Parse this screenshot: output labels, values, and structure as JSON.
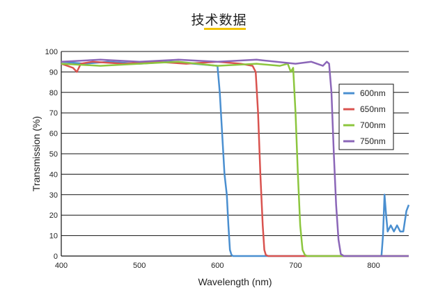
{
  "header": {
    "title": "技术数据"
  },
  "chart_data": {
    "type": "line",
    "xlabel": "Wavelength (nm)",
    "ylabel": "Transmission (%)",
    "xlim": [
      400,
      845
    ],
    "ylim": [
      0,
      100
    ],
    "x_ticks": [
      400,
      500,
      600,
      700,
      800
    ],
    "y_ticks": [
      0,
      10,
      20,
      30,
      40,
      50,
      60,
      70,
      80,
      90,
      100
    ],
    "grid": "horizontal",
    "legend_position": "right",
    "series": [
      {
        "name": "600nm",
        "color": "#4a8fd0",
        "x": [
          400,
          430,
          460,
          500,
          540,
          570,
          600,
          603,
          606,
          609,
          612,
          614,
          616,
          618,
          620,
          640,
          700,
          780,
          810,
          812,
          814,
          816,
          818,
          822,
          826,
          830,
          834,
          838,
          842,
          845
        ],
        "y": [
          95,
          94,
          95,
          94,
          95,
          94,
          93,
          80,
          60,
          40,
          30,
          15,
          3,
          0.5,
          0,
          0,
          0,
          0,
          0,
          10,
          30,
          20,
          12,
          15,
          12,
          15,
          12,
          12,
          22,
          25
        ]
      },
      {
        "name": "650nm",
        "color": "#d9534f",
        "x": [
          400,
          415,
          420,
          425,
          440,
          480,
          520,
          560,
          600,
          630,
          645,
          649,
          652,
          655,
          658,
          660,
          662,
          665,
          670,
          700,
          800,
          845
        ],
        "y": [
          94,
          92,
          90,
          94,
          95,
          94,
          95,
          94,
          95,
          94,
          93,
          90,
          70,
          40,
          15,
          3,
          0.5,
          0,
          0,
          0,
          0,
          0
        ]
      },
      {
        "name": "700nm",
        "color": "#8cc63e",
        "x": [
          400,
          450,
          500,
          550,
          600,
          650,
          680,
          690,
          694,
          697,
          700,
          703,
          706,
          709,
          712,
          715,
          720,
          750,
          800,
          845
        ],
        "y": [
          94,
          93,
          94,
          95,
          93,
          94,
          93,
          94,
          90,
          92,
          70,
          40,
          15,
          3,
          0.5,
          0,
          0,
          0,
          0,
          0
        ]
      },
      {
        "name": "750nm",
        "color": "#8b66b8",
        "x": [
          400,
          450,
          500,
          550,
          600,
          650,
          700,
          720,
          735,
          740,
          743,
          746,
          749,
          752,
          755,
          758,
          762,
          770,
          800,
          845
        ],
        "y": [
          95,
          96,
          95,
          96,
          95,
          96,
          94,
          95,
          93,
          95,
          94,
          80,
          50,
          25,
          8,
          1,
          0,
          0,
          0,
          0
        ]
      }
    ]
  }
}
